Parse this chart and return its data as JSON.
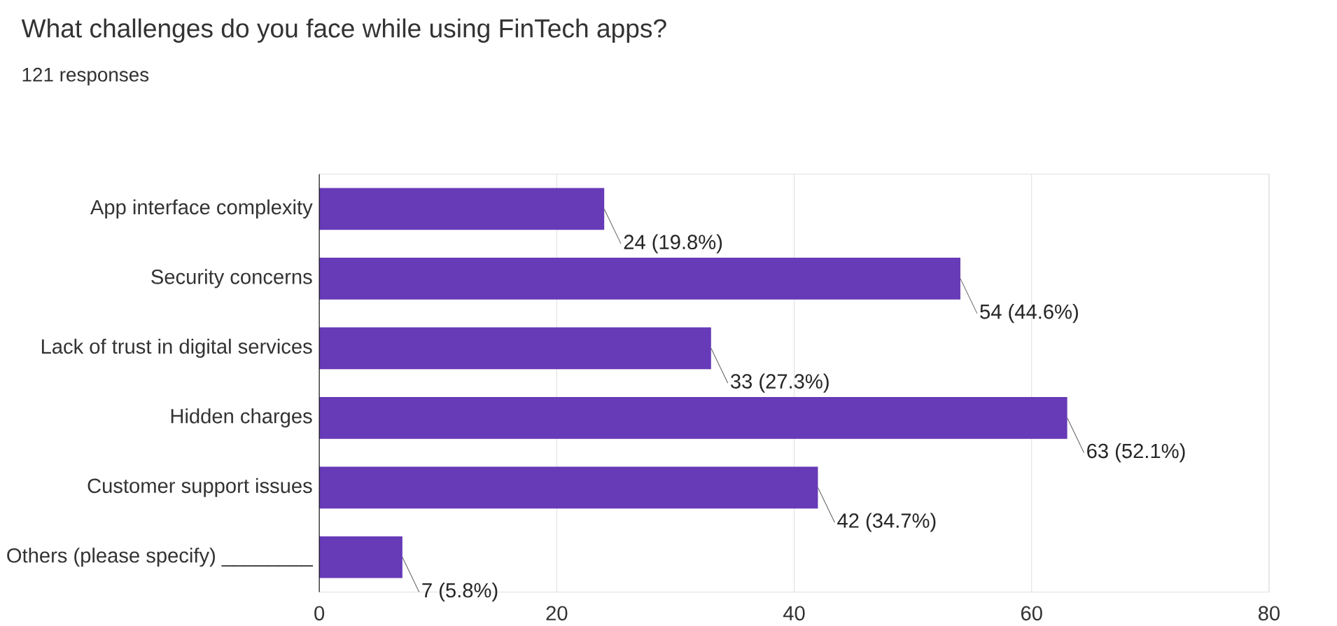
{
  "chart_data": {
    "type": "bar",
    "orientation": "horizontal",
    "title": "What challenges do you face while using FinTech apps?",
    "subtitle": "121 responses",
    "categories": [
      "App interface complexity",
      "Security concerns",
      "Lack of trust in digital services",
      "Hidden charges",
      "Customer support issues",
      "Others (please specify) ________"
    ],
    "values": [
      24,
      54,
      33,
      63,
      42,
      7
    ],
    "value_labels": [
      "24 (19.8%)",
      "54 (44.6%)",
      "33 (27.3%)",
      "63 (52.1%)",
      "42 (34.7%)",
      "7 (5.8%)"
    ],
    "color": "#673ab7",
    "xlim": [
      0,
      80
    ],
    "xticks": [
      0,
      20,
      40,
      60,
      80
    ],
    "grid": "x"
  }
}
